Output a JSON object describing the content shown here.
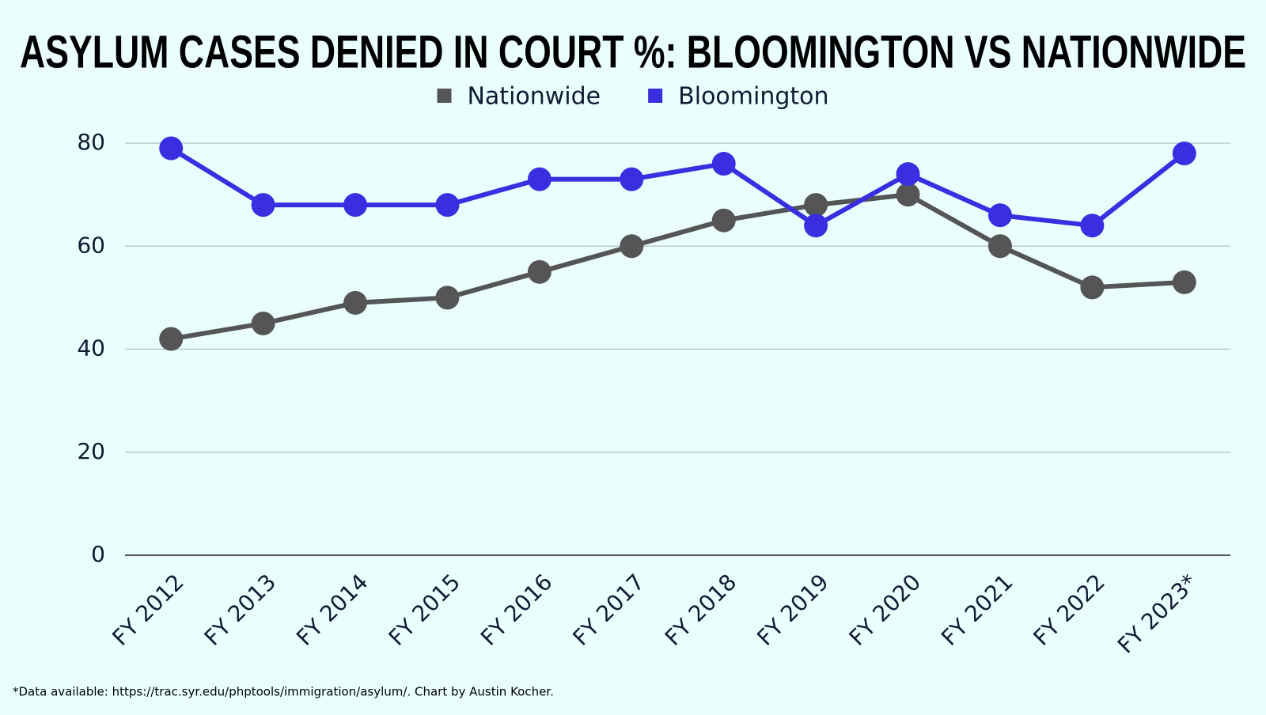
{
  "chart_data": {
    "type": "line",
    "title": "ASYLUM CASES DENIED IN COURT %: BLOOMINGTON VS NATIONWIDE",
    "categories": [
      "FY 2012",
      "FY 2013",
      "FY 2014",
      "FY 2015",
      "FY 2016",
      "FY 2017",
      "FY 2018",
      "FY 2019",
      "FY 2020",
      "FY 2021",
      "FY 2022",
      "FY 2023*"
    ],
    "series": [
      {
        "name": "Nationwide",
        "color": "#555555",
        "values": [
          42,
          45,
          49,
          50,
          55,
          60,
          65,
          68,
          70,
          60,
          52,
          53
        ]
      },
      {
        "name": "Bloomington",
        "color": "#3a2fe0",
        "values": [
          79,
          68,
          68,
          68,
          73,
          73,
          76,
          64,
          74,
          66,
          64,
          78
        ]
      }
    ],
    "ylim": [
      0,
      80
    ],
    "yticks": [
      0,
      20,
      40,
      60,
      80
    ],
    "grid": true,
    "legend": "top",
    "note": "*Data available: https://trac.syr.edu/phptools/immigration/asylum/. Chart by Austin Kocher."
  }
}
